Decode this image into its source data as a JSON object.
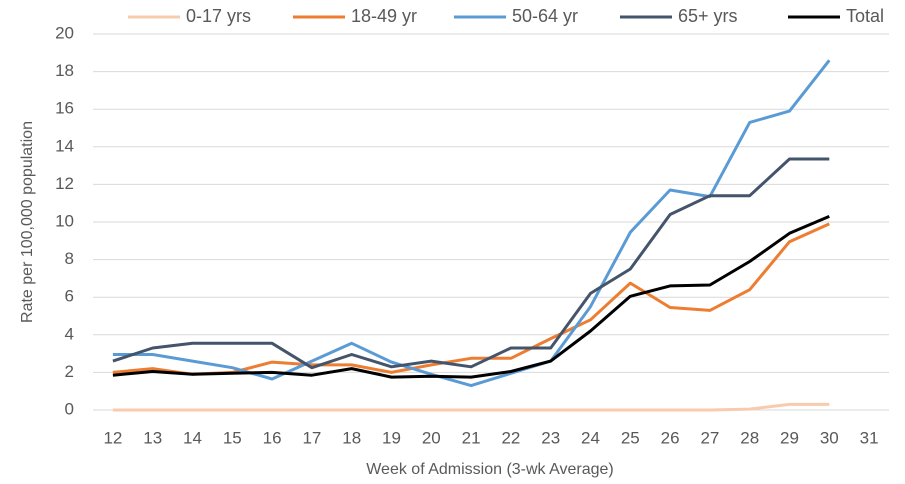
{
  "chart_data": {
    "type": "line",
    "x_label": "Week of Admission (3-wk Average)",
    "y_label": "Rate per 100,000 population",
    "categories": [
      "12",
      "13",
      "14",
      "15",
      "16",
      "17",
      "18",
      "19",
      "20",
      "21",
      "22",
      "23",
      "24",
      "25",
      "26",
      "27",
      "28",
      "29",
      "30",
      "31"
    ],
    "series": [
      {
        "name": "0-17 yrs",
        "color": "#f8cbad",
        "values": [
          0,
          0,
          0,
          0,
          0,
          0,
          0,
          0,
          0,
          0,
          0,
          0,
          0,
          0,
          0,
          0,
          0.05,
          0.3,
          0.3,
          null
        ]
      },
      {
        "name": "18-49 yr",
        "color": "#ed7d31",
        "values": [
          2.0,
          2.2,
          1.9,
          2.0,
          2.55,
          2.4,
          2.4,
          2.0,
          2.4,
          2.75,
          2.75,
          3.8,
          4.8,
          6.75,
          5.45,
          5.3,
          6.4,
          8.95,
          9.9,
          null
        ]
      },
      {
        "name": "50-64 yr",
        "color": "#5b9bd5",
        "values": [
          2.95,
          2.95,
          2.6,
          2.25,
          1.65,
          2.6,
          3.55,
          2.55,
          1.9,
          1.3,
          1.95,
          2.6,
          5.5,
          9.45,
          11.7,
          11.35,
          15.3,
          15.9,
          18.6,
          null
        ]
      },
      {
        "name": "65+ yrs",
        "color": "#44546a",
        "values": [
          2.6,
          3.3,
          3.55,
          3.55,
          3.55,
          2.25,
          2.95,
          2.3,
          2.6,
          2.3,
          3.3,
          3.3,
          6.2,
          7.5,
          10.4,
          11.4,
          11.4,
          13.35,
          13.35,
          null
        ]
      },
      {
        "name": "Total",
        "color": "#000000",
        "values": [
          1.85,
          2.05,
          1.9,
          1.95,
          2.0,
          1.85,
          2.2,
          1.75,
          1.8,
          1.75,
          2.05,
          2.6,
          4.2,
          6.05,
          6.6,
          6.65,
          7.9,
          9.4,
          10.3,
          null
        ]
      }
    ],
    "ylim": [
      0,
      20
    ],
    "yticks": [
      0,
      2,
      4,
      6,
      8,
      10,
      12,
      14,
      16,
      18,
      20
    ],
    "grid": true,
    "legend": "top"
  }
}
